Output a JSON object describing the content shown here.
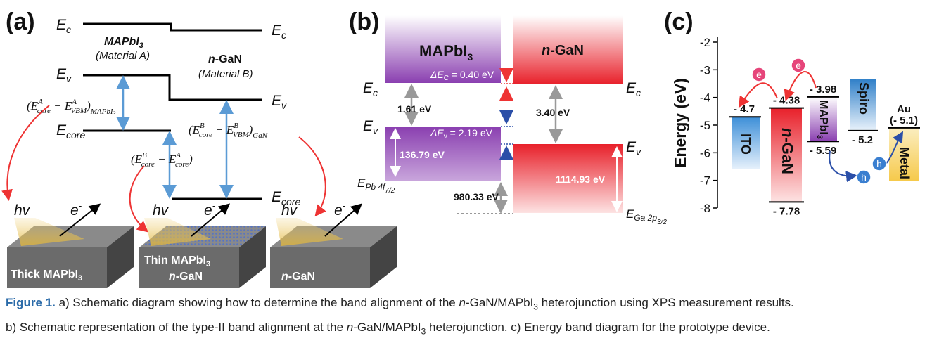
{
  "figure": {
    "panel_a": {
      "label": "(a)",
      "ec_left": [
        "E",
        "c"
      ],
      "ec_right": [
        "E",
        "c"
      ],
      "ev_left": [
        "E",
        "v"
      ],
      "ev_right": [
        "E",
        "v"
      ],
      "ecore_left": [
        "E",
        "core"
      ],
      "ecore_right": [
        "E",
        "core"
      ],
      "material_a": [
        "MAPbI",
        "3",
        "(Material A)"
      ],
      "material_b": [
        "n",
        "-GaN",
        "(Material B)"
      ],
      "eq_a": [
        "(E",
        "A",
        "core",
        " − E",
        "A",
        "VBM",
        ")",
        "MAPbI",
        "3"
      ],
      "eq_b": [
        "(E",
        "B",
        "core",
        " − E",
        "B",
        "VBM",
        ")",
        "GaN"
      ],
      "eq_c": [
        "(E",
        "B",
        "core",
        " − E",
        "A",
        "core",
        ")"
      ],
      "photons": [
        "hv",
        "hv",
        "hv"
      ],
      "electrons": [
        [
          "e",
          "-"
        ],
        [
          "e",
          "-"
        ],
        [
          "e",
          "-"
        ]
      ],
      "block_1": [
        "Thick MAPbI",
        "3"
      ],
      "block_2": [
        "Thin MAPbI",
        "3",
        "n",
        "-GaN"
      ],
      "block_3": [
        "n",
        "-GaN"
      ]
    },
    "panel_b": {
      "label": "(b)",
      "mapbi": [
        "MAPbI",
        "3"
      ],
      "ngan": [
        "n",
        "-GaN"
      ],
      "ec_left": [
        "E",
        "c"
      ],
      "ev_left": [
        "E",
        "v"
      ],
      "epb": [
        "E",
        "Pb 4f",
        "7/2"
      ],
      "delta_ec": [
        "ΔE",
        "C",
        " = 0.40 eV"
      ],
      "delta_ev": [
        "ΔE",
        "v",
        " = 2.19 eV"
      ],
      "gap_a": "1.61 eV",
      "gap_b": "3.40 eV",
      "core_a": "136.79 eV",
      "core_b": "1114.93 eV",
      "core_offset": "980.33 eV",
      "ec_right": [
        "E",
        "c"
      ],
      "ev_right": [
        "E",
        "v"
      ],
      "ega": [
        "E",
        "Ga 2p",
        "3/2"
      ]
    },
    "panel_c": {
      "label": "(c)",
      "ylabel": "Energy (eV)",
      "ylim": [
        -8,
        -2
      ],
      "yticks": [
        -2,
        -3,
        -4,
        -5,
        -6,
        -7,
        -8
      ],
      "levels": [
        {
          "value": -4.7,
          "label": "- 4.7"
        },
        {
          "value": -4.38,
          "label": "- 4.38"
        },
        {
          "value": -7.78,
          "label": "- 7.78"
        },
        {
          "value": -3.98,
          "label": "- 3.98"
        },
        {
          "value": -5.59,
          "label": "- 5.59"
        },
        {
          "value": -5.2,
          "label": "- 5.2"
        },
        {
          "value": -5.1,
          "label": "(- 5.1)"
        }
      ],
      "ito": "ITO",
      "ngan": [
        "n",
        "-GaN"
      ],
      "mapbi": [
        "MAPbI",
        "3"
      ],
      "spiro": "Spiro",
      "metal": "Metal",
      "au": "Au",
      "carriers": [
        "e",
        "e",
        "h",
        "h"
      ]
    },
    "caption": {
      "label": "Figure 1.",
      "line_1": [
        " a) Schematic diagram showing how to determine the band alignment of the ",
        "n",
        "-GaN/MAPbI",
        "3",
        " heterojunction using XPS measurement results."
      ],
      "line_2": [
        "b) Schematic representation of the type-II band alignment at the ",
        "n",
        "-GaN/MAPbI",
        "3",
        " heterojunction. c) Energy band diagram for the prototype device."
      ]
    }
  }
}
